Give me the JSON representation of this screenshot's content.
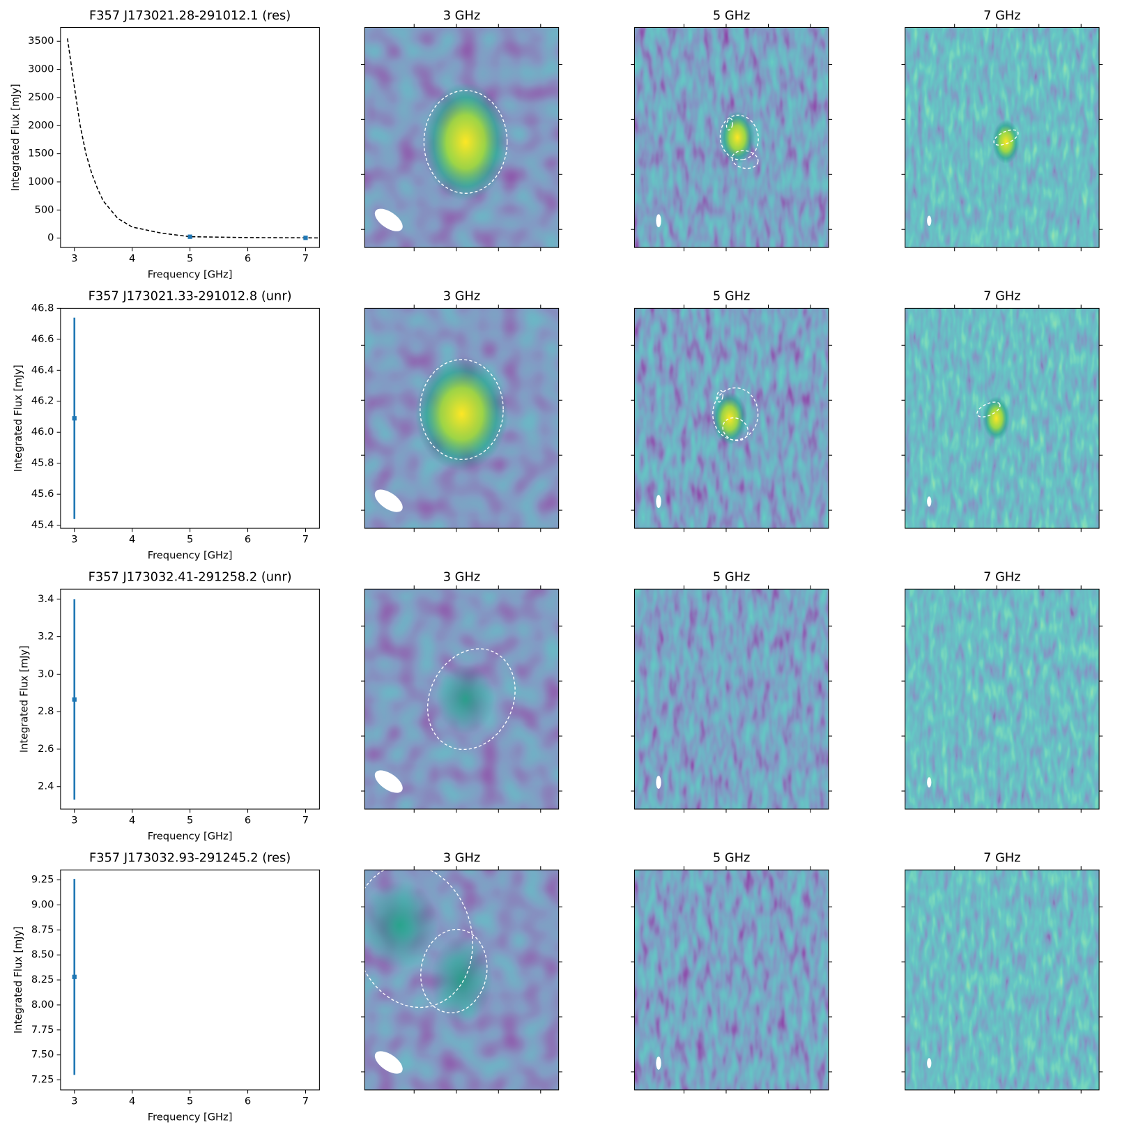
{
  "chart_data": [
    {
      "type": "line",
      "title": "F357 J173021.28-291012.1 (res)",
      "xlabel": "Frequency [GHz]",
      "ylabel": "Integrated Flux [mJy]",
      "xlim": [
        2.76,
        7.24
      ],
      "ylim": [
        -167,
        3745
      ],
      "xticks": [
        3,
        4,
        5,
        6,
        7
      ],
      "yticks": [
        0,
        500,
        1000,
        1500,
        2000,
        2500,
        3000,
        3500
      ],
      "series": [
        {
          "color": "#000000",
          "style": "dashed",
          "x": [
            2.88,
            3,
            3.1,
            3.2,
            3.3,
            3.4,
            3.5,
            3.75,
            4,
            4.5,
            5,
            6,
            7,
            7.24
          ],
          "values": [
            3550,
            2690,
            2000,
            1500,
            1150,
            880,
            660,
            350,
            197,
            90,
            25,
            10,
            5,
            4
          ]
        },
        {
          "color": "#1f77b4",
          "style": "markers",
          "x": [
            5,
            7
          ],
          "values": [
            25,
            5
          ]
        }
      ],
      "panels": [
        "3 GHz",
        "5 GHz",
        "7 GHz"
      ]
    },
    {
      "type": "errorbar",
      "title": "F357 J173021.33-291012.8 (unr)",
      "xlabel": "Frequency [GHz]",
      "ylabel": "Integrated Flux [mJy]",
      "xlim": [
        2.76,
        7.24
      ],
      "ylim": [
        45.38,
        46.8
      ],
      "xticks": [
        3,
        4,
        5,
        6,
        7
      ],
      "yticks": [
        45.4,
        45.6,
        45.8,
        {
          "value": 46.0,
          "label": "46.0"
        },
        46.2,
        46.4,
        46.6,
        46.8
      ],
      "series": [
        {
          "color": "#1f77b4",
          "style": "errorbar",
          "x": [
            3
          ],
          "values": [
            46.09
          ],
          "errors": [
            0.65
          ]
        }
      ],
      "panels": [
        "3 GHz",
        "5 GHz",
        "7 GHz"
      ]
    },
    {
      "type": "errorbar",
      "title": "F357 J173032.41-291258.2 (unr)",
      "xlabel": "Frequency [GHz]",
      "ylabel": "Integrated Flux [mJy]",
      "xlim": [
        2.76,
        7.24
      ],
      "ylim": [
        2.28,
        3.454
      ],
      "xticks": [
        3,
        4,
        5,
        6,
        7
      ],
      "yticks": [
        2.4,
        2.6,
        2.8,
        {
          "value": 3.0,
          "label": "3.0"
        },
        3.2,
        3.4
      ],
      "series": [
        {
          "color": "#1f77b4",
          "style": "errorbar",
          "x": [
            3
          ],
          "values": [
            2.865
          ],
          "errors": [
            0.535
          ]
        }
      ],
      "panels": [
        "3 GHz",
        "5 GHz",
        "7 GHz"
      ]
    },
    {
      "type": "errorbar",
      "title": "F357 J173032.93-291245.2 (res)",
      "xlabel": "Frequency [GHz]",
      "ylabel": "Integrated Flux [mJy]",
      "xlim": [
        2.76,
        7.24
      ],
      "ylim": [
        7.15,
        9.35
      ],
      "xticks": [
        3,
        4,
        5,
        6,
        7
      ],
      "yticks": [
        7.25,
        {
          "value": 7.5,
          "label": "7.50"
        },
        7.75,
        {
          "value": 8.0,
          "label": "8.00"
        },
        8.25,
        {
          "value": 8.5,
          "label": "8.50"
        },
        8.75,
        {
          "value": 9.0,
          "label": "9.00"
        },
        9.25
      ],
      "series": [
        {
          "color": "#1f77b4",
          "style": "errorbar",
          "x": [
            3
          ],
          "values": [
            8.28
          ],
          "errors": [
            0.98
          ]
        }
      ],
      "panels": [
        "3 GHz",
        "5 GHz",
        "7 GHz"
      ]
    }
  ]
}
